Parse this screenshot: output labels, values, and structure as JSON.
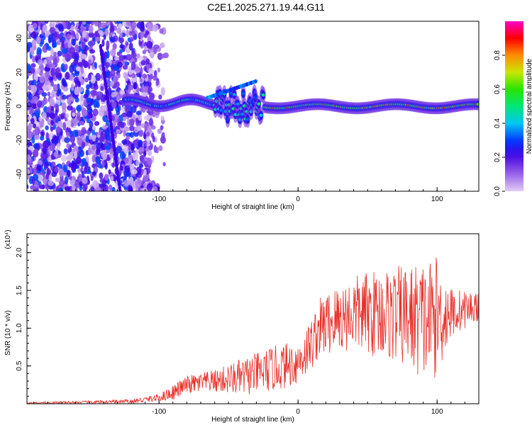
{
  "title": "C2E1.2025.271.19.44.G11",
  "chart_data": [
    {
      "type": "heatmap",
      "xlabel": "Height of straight line (km)",
      "ylabel": "Frequency (Hz)",
      "xlim": [
        -195,
        130
      ],
      "ylim": [
        -50,
        50
      ],
      "xticks": [
        -100,
        0,
        100
      ],
      "yticks": [
        -40,
        -20,
        0,
        20,
        40
      ],
      "colorbar": {
        "label": "Normalized spectral amplitude",
        "range": [
          0,
          1
        ],
        "ticks": [
          "0.0",
          "0.2",
          "0.4",
          "0.6",
          "0.8"
        ]
      },
      "features": [
        {
          "name": "noise-region",
          "x": [
            -195,
            -105
          ],
          "freq_range": [
            -50,
            50
          ],
          "amplitude": 0.15
        },
        {
          "name": "diagonal-streak",
          "x": [
            -142,
            -128
          ],
          "freq": [
            35,
            -50
          ],
          "amplitude": 0.2
        },
        {
          "name": "signal-track",
          "x": [
            -125,
            130
          ],
          "freq": 0,
          "amplitude_peak": 1.0
        }
      ]
    },
    {
      "type": "line",
      "xlabel": "Height of straight line (km)",
      "ylabel": "SNR (10 * v/v)",
      "multiplier_label": "(x10⁴)",
      "xlim": [
        -195,
        130
      ],
      "ylim": [
        0,
        2.25
      ],
      "xticks": [
        -100,
        0,
        100
      ],
      "yticks": [
        0.5,
        1.0,
        1.5,
        2.0
      ],
      "series": [
        {
          "name": "SNR",
          "color": "#e8302a",
          "envelope_x": [
            -195,
            -150,
            -120,
            -100,
            -90,
            -80,
            -60,
            -40,
            -20,
            0,
            10,
            15,
            25,
            40,
            60,
            80,
            90,
            100,
            110,
            120,
            130
          ],
          "envelope_mean": [
            0.01,
            0.02,
            0.03,
            0.08,
            0.15,
            0.25,
            0.3,
            0.35,
            0.45,
            0.55,
            0.8,
            1.0,
            1.1,
            1.2,
            1.2,
            1.15,
            1.1,
            1.15,
            1.2,
            1.25,
            1.3
          ],
          "envelope_amp": [
            0.01,
            0.02,
            0.03,
            0.05,
            0.1,
            0.12,
            0.15,
            0.25,
            0.3,
            0.3,
            0.35,
            0.4,
            0.45,
            0.5,
            0.6,
            0.7,
            0.8,
            0.8,
            0.35,
            0.25,
            0.2
          ]
        }
      ]
    }
  ]
}
